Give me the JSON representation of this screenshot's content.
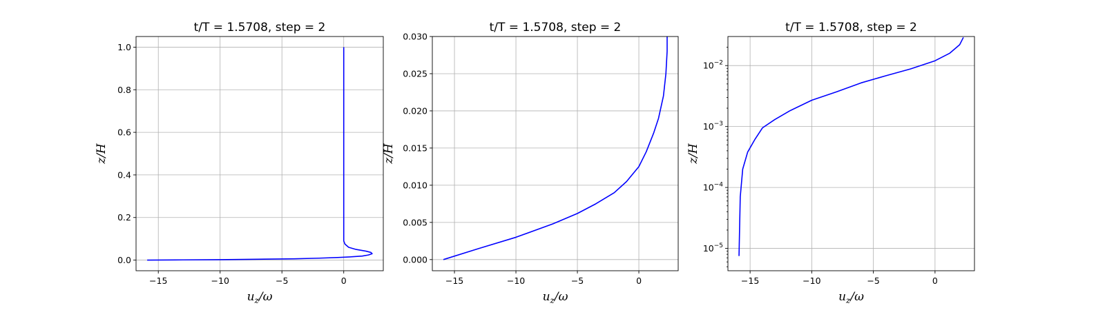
{
  "chart_data": [
    {
      "type": "line",
      "title": "t/T = 1.5708, step = 2",
      "xlabel": "u_z/ω",
      "ylabel": "z/H",
      "xlim": [
        -16.8,
        3.2
      ],
      "ylim": [
        -0.05,
        1.05
      ],
      "yscale": "linear",
      "grid": true,
      "xticks": [
        -15,
        -10,
        -5,
        0
      ],
      "xtick_labels": [
        "−15",
        "−10",
        "−5",
        "0"
      ],
      "yticks": [
        0.0,
        0.2,
        0.4,
        0.6,
        0.8,
        1.0
      ],
      "ytick_labels": [
        "0.0",
        "0.2",
        "0.4",
        "0.6",
        "0.8",
        "1.0"
      ],
      "series": [
        {
          "color": "#0000ff",
          "x": [
            -15.9,
            -13.0,
            -10.0,
            -7.0,
            -4.0,
            -2.0,
            -0.5,
            0.5,
            1.5,
            2.0,
            2.3,
            2.2,
            1.8,
            1.0,
            0.4,
            0.1,
            0.0,
            0.0,
            0.0,
            0.0
          ],
          "y": [
            0.0,
            0.001,
            0.002,
            0.004,
            0.006,
            0.009,
            0.012,
            0.015,
            0.019,
            0.024,
            0.03,
            0.036,
            0.042,
            0.05,
            0.06,
            0.075,
            0.09,
            0.13,
            0.5,
            1.0
          ]
        }
      ]
    },
    {
      "type": "line",
      "title": "t/T = 1.5708, step = 2",
      "xlabel": "u_z/ω",
      "ylabel": "z/H",
      "xlim": [
        -16.8,
        3.2
      ],
      "ylim": [
        -0.0015,
        0.03
      ],
      "yscale": "linear",
      "grid": true,
      "xticks": [
        -15,
        -10,
        -5,
        0
      ],
      "xtick_labels": [
        "−15",
        "−10",
        "−5",
        "0"
      ],
      "yticks": [
        0.0,
        0.005,
        0.01,
        0.015,
        0.02,
        0.025,
        0.03
      ],
      "ytick_labels": [
        "0.000",
        "0.005",
        "0.010",
        "0.015",
        "0.020",
        "0.025",
        "0.030"
      ],
      "series": [
        {
          "color": "#0000ff",
          "x": [
            -15.9,
            -13.0,
            -10.0,
            -7.0,
            -5.0,
            -3.5,
            -2.0,
            -1.0,
            0.0,
            0.6,
            1.2,
            1.6,
            2.0,
            2.2,
            2.3,
            2.3
          ],
          "y": [
            0.0,
            0.0015,
            0.003,
            0.0048,
            0.0062,
            0.0075,
            0.009,
            0.0105,
            0.0125,
            0.0145,
            0.017,
            0.019,
            0.022,
            0.025,
            0.028,
            0.03
          ]
        }
      ]
    },
    {
      "type": "line",
      "title": "t/T = 1.5708, step = 2",
      "xlabel": "u_z/ω",
      "ylabel": "z/H",
      "xlim": [
        -16.8,
        3.2
      ],
      "ylim": [
        4.3e-06,
        0.03
      ],
      "yscale": "log",
      "grid": true,
      "xticks": [
        -15,
        -10,
        -5,
        0
      ],
      "xtick_labels": [
        "−15",
        "−10",
        "−5",
        "0"
      ],
      "yticks": [
        1e-05,
        0.0001,
        0.001,
        0.01
      ],
      "ytick_labels": [
        "10",
        "10",
        "10",
        "10"
      ],
      "ytick_exponents": [
        "−5",
        "−4",
        "−3",
        "−2"
      ],
      "series": [
        {
          "color": "#0000ff",
          "x": [
            -15.9,
            -15.8,
            -15.6,
            -15.2,
            -14.6,
            -14.0,
            -13.0,
            -11.8,
            -10.0,
            -8.0,
            -6.0,
            -4.0,
            -2.0,
            0.0,
            1.2,
            2.0,
            2.3
          ],
          "y": [
            7.5e-06,
            7e-05,
            0.0002,
            0.00038,
            0.00062,
            0.00095,
            0.0013,
            0.0018,
            0.0027,
            0.0037,
            0.0052,
            0.0068,
            0.0088,
            0.012,
            0.016,
            0.022,
            0.029
          ]
        }
      ]
    }
  ]
}
